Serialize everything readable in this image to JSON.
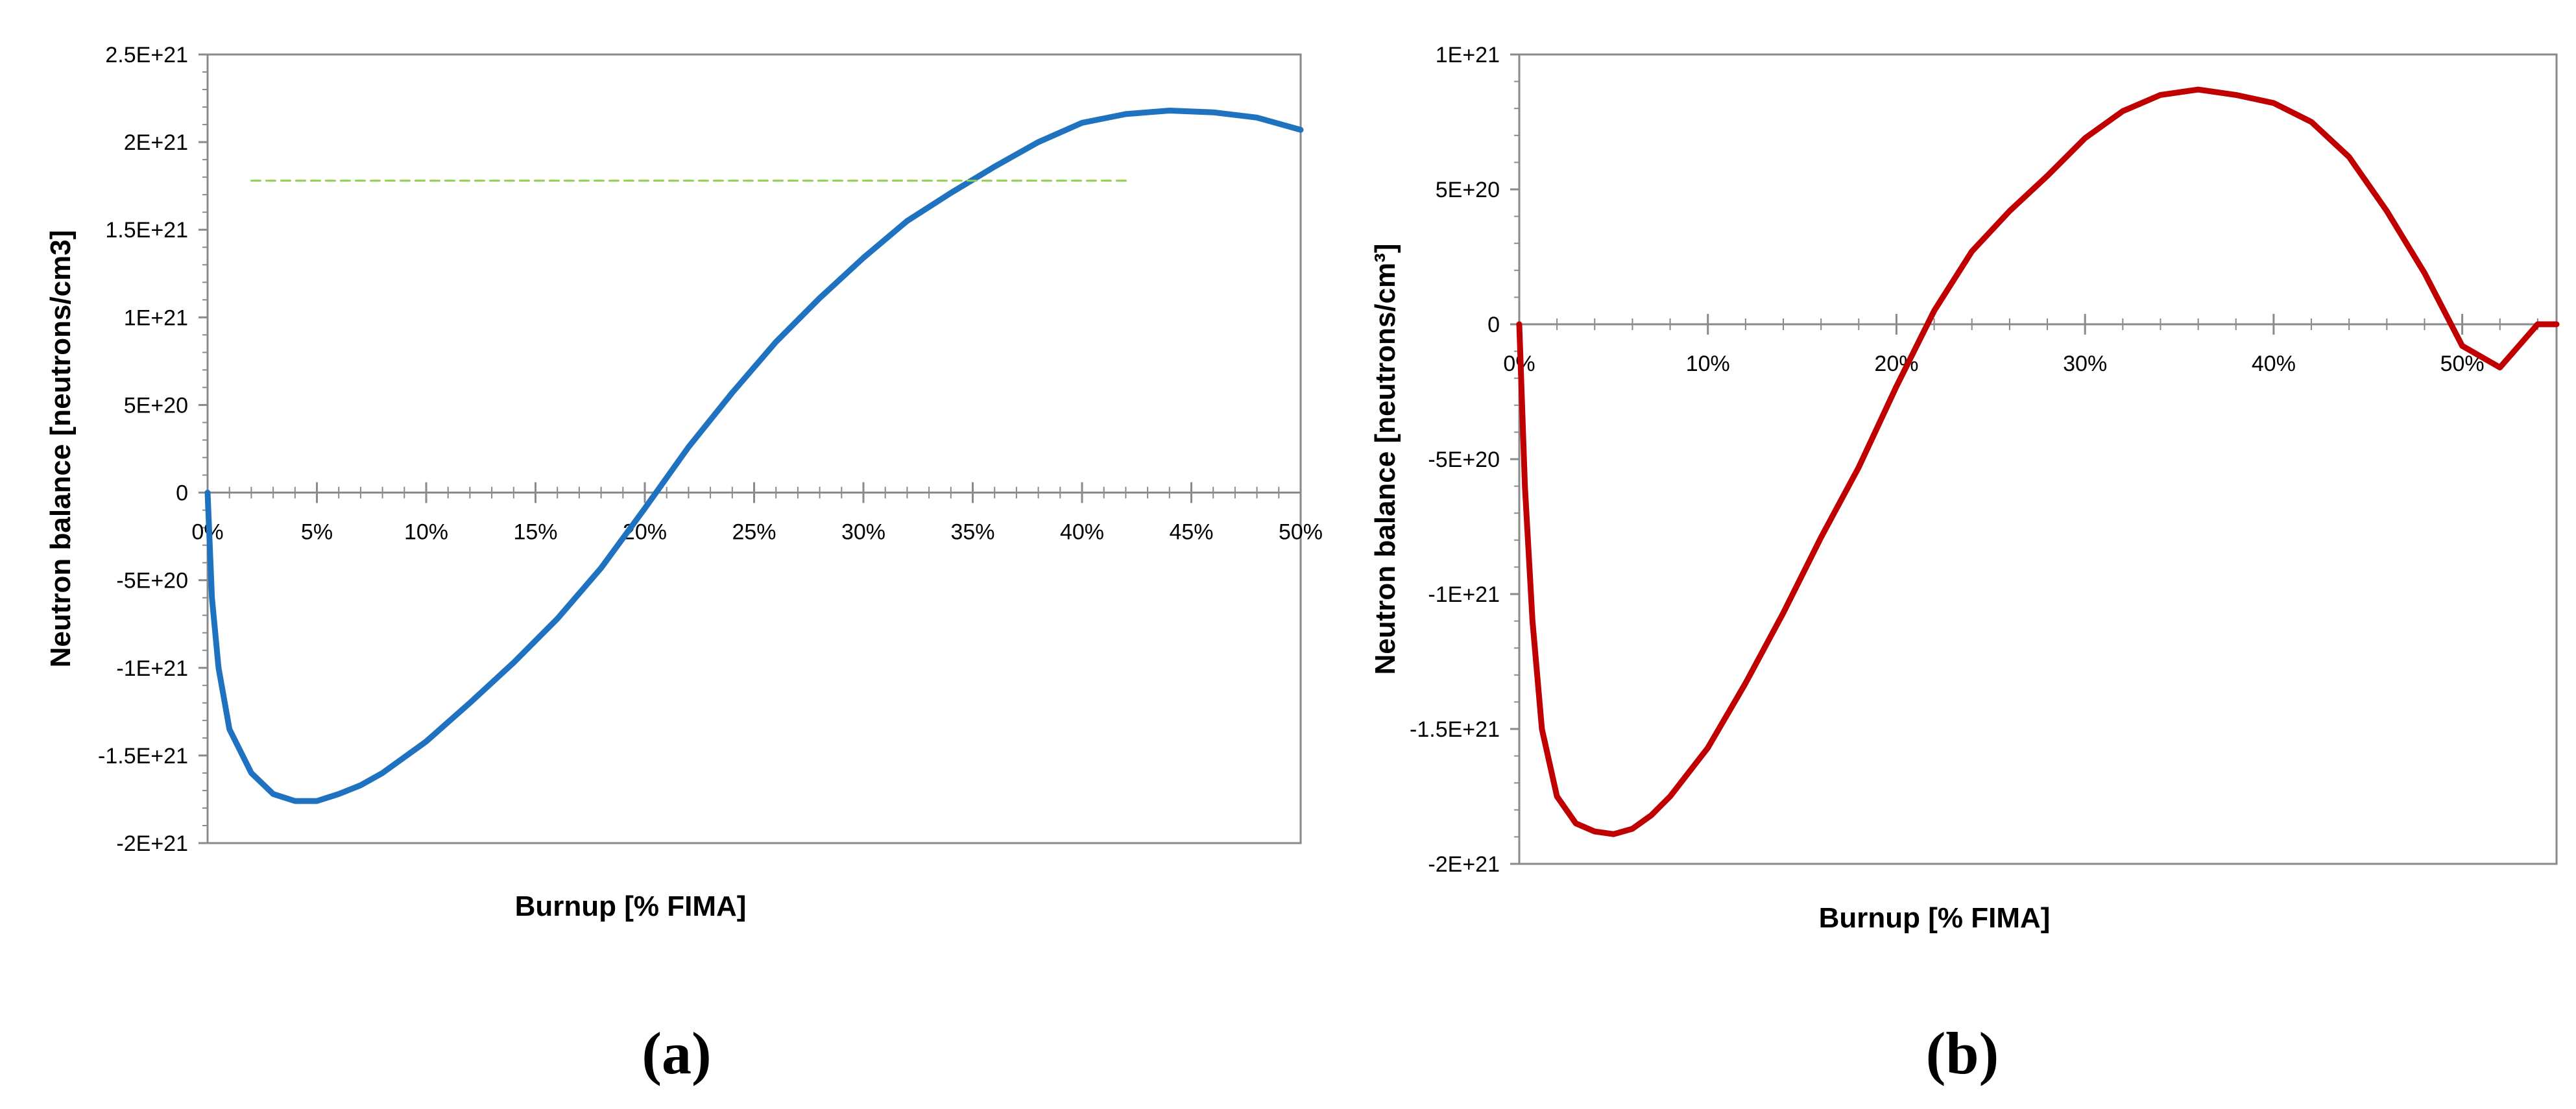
{
  "chart_data": [
    {
      "type": "line",
      "panel_label": "(a)",
      "xlabel": "Burnup [% FIMA]",
      "ylabel": "Neutron balance [neutrons/cm3]",
      "xlim": [
        0,
        50
      ],
      "ylim": [
        -2e+21,
        2.5e+21
      ],
      "x_ticks": [
        0,
        5,
        10,
        15,
        20,
        25,
        30,
        35,
        40,
        45,
        50
      ],
      "x_tick_labels": [
        "0%",
        "5%",
        "10%",
        "15%",
        "20%",
        "25%",
        "30%",
        "35%",
        "40%",
        "45%",
        "50%"
      ],
      "y_ticks": [
        2.5e+21,
        2e+21,
        1.5e+21,
        1e+21,
        5e+20,
        0,
        -5e+20,
        -1e+21,
        -1.5e+21,
        -2e+21
      ],
      "y_tick_labels": [
        "2.5E+21",
        "2E+21",
        "1.5E+21",
        "1E+21",
        "5E+20",
        "0",
        "-5E+20",
        "-1E+21",
        "-1.5E+21",
        "-2E+21"
      ],
      "grid": false,
      "series": [
        {
          "color": "#1f72c0",
          "x": [
            0,
            0.2,
            0.5,
            1,
            2,
            3,
            4,
            5,
            6,
            7,
            8,
            10,
            12,
            14,
            16,
            18,
            20,
            22,
            24,
            26,
            28,
            30,
            32,
            34,
            36,
            38,
            40,
            42,
            44,
            46,
            48,
            50
          ],
          "y": [
            0,
            -6e+20,
            -1e+21,
            -1.35e+21,
            -1.6e+21,
            -1.72e+21,
            -1.76e+21,
            -1.76e+21,
            -1.72e+21,
            -1.67e+21,
            -1.6e+21,
            -1.42e+21,
            -1.2e+21,
            -9.7e+20,
            -7.2e+20,
            -4.3e+20,
            -9e+19,
            2.6e+20,
            5.7e+20,
            8.6e+20,
            1.11e+21,
            1.34e+21,
            1.55e+21,
            1.71e+21,
            1.86e+21,
            2e+21,
            2.11e+21,
            2.16e+21,
            2.18e+21,
            2.17e+21,
            2.14e+21,
            2.07e+21
          ]
        },
        {
          "style": "dashed",
          "color": "#92d050",
          "x": [
            2,
            42
          ],
          "y": [
            1.78e+21,
            1.78e+21
          ]
        }
      ]
    },
    {
      "type": "line",
      "panel_label": "(b)",
      "xlabel": "Burnup [% FIMA]",
      "ylabel": "Neutron balance [neutrons/cm³]",
      "xlim": [
        0,
        55
      ],
      "ylim": [
        -2e+21,
        1e+21
      ],
      "x_ticks": [
        0,
        10,
        20,
        30,
        40,
        50
      ],
      "x_tick_labels": [
        "0%",
        "10%",
        "20%",
        "30%",
        "40%",
        "50%"
      ],
      "y_ticks": [
        1e+21,
        5e+20,
        0,
        -5e+20,
        -1e+21,
        -1.5e+21,
        -2e+21
      ],
      "y_tick_labels": [
        "1E+21",
        "5E+20",
        "0",
        "-5E+20",
        "-1E+21",
        "-1.5E+21",
        "-2E+21"
      ],
      "grid": false,
      "series": [
        {
          "color": "#c00000",
          "x": [
            0,
            0.3,
            0.7,
            1.2,
            2,
            3,
            4,
            5,
            6,
            7,
            8,
            10,
            12,
            14,
            16,
            18,
            20,
            22,
            24,
            26,
            28,
            30,
            32,
            34,
            36,
            38,
            40,
            42,
            44,
            46,
            48,
            50,
            52,
            54,
            55
          ],
          "y": [
            0,
            -6e+20,
            -1.1e+21,
            -1.5e+21,
            -1.75e+21,
            -1.85e+21,
            -1.88e+21,
            -1.89e+21,
            -1.87e+21,
            -1.82e+21,
            -1.75e+21,
            -1.57e+21,
            -1.33e+21,
            -1.07e+21,
            -7.9e+20,
            -5.3e+20,
            -2.3e+20,
            5e+19,
            2.7e+20,
            4.2e+20,
            5.5e+20,
            6.9e+20,
            7.9e+20,
            8.5e+20,
            8.7e+20,
            8.5e+20,
            8.2e+20,
            7.5e+20,
            6.2e+20,
            4.2e+20,
            1.9e+20,
            -8e+19,
            -1.6e+20,
            0,
            0
          ]
        }
      ]
    }
  ]
}
